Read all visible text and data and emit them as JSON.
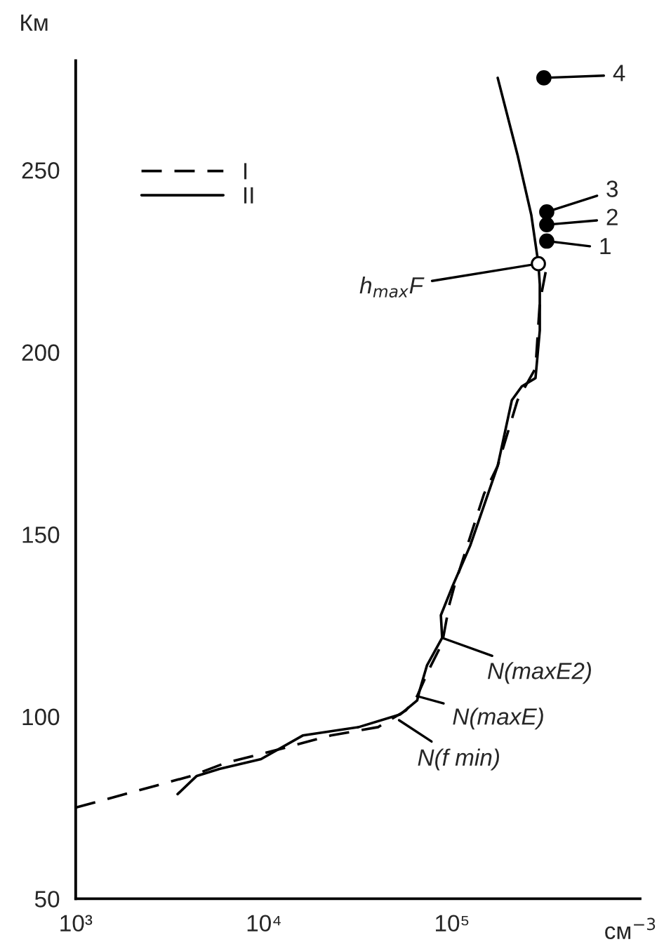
{
  "chart_data": {
    "type": "line",
    "ylabel": "Км",
    "xlabel": "см$^{−3}$",
    "log": "x",
    "xlim": [
      1000,
      1000000
    ],
    "xticks": [
      {
        "value": 1000,
        "label": "10³"
      },
      {
        "value": 10000,
        "label": "10⁴"
      },
      {
        "value": 100000,
        "label": "10⁵"
      }
    ],
    "ylim": [
      50,
      280
    ],
    "yticks": [
      50,
      100,
      150,
      200,
      250
    ],
    "grid": false,
    "legend": "top left",
    "series": [
      {
        "name": "I",
        "line_style": "dashed",
        "color": "#000000",
        "x": [
          1000,
          4120,
          6210,
          12900,
          22700,
          40500,
          57000,
          65300,
          74800,
          88700,
          96600,
          103500,
          148000,
          175000,
          223000,
          278000,
          293000,
          319000
        ],
        "values": [
          75,
          83.7,
          87.2,
          91.4,
          94.8,
          97.1,
          101.7,
          105.6,
          112.5,
          120.1,
          130.5,
          136.2,
          161.1,
          168.8,
          186.8,
          195.6,
          213.6,
          223.6
        ]
      },
      {
        "name": "II",
        "line_style": "solid",
        "color": "#000000",
        "x": [
          3480,
          4400,
          5800,
          9660,
          16100,
          31900,
          53200,
          65300,
          67600,
          73600,
          88700,
          87300,
          100000,
          125000,
          175000,
          208000,
          235000,
          278000,
          293000,
          293000,
          288000,
          264000,
          223000,
          175000
        ],
        "values": [
          78.7,
          83.7,
          85.6,
          88.3,
          94.8,
          97.1,
          100.6,
          104.4,
          107.5,
          114,
          121.6,
          127.8,
          135.4,
          146.9,
          168.8,
          186.8,
          190.6,
          192.9,
          206,
          218.6,
          224.3,
          237.7,
          254.2,
          275.3
        ]
      },
      {
        "type": "scatter",
        "marker": "circle",
        "color": "#ffffff",
        "x": [
          288000
        ],
        "values": [
          224.3
        ]
      },
      {
        "type": "scatter",
        "marker": "circle",
        "color": "#000000",
        "x": [
          319000,
          319000,
          319000,
          308000
        ],
        "values": [
          230.5,
          235,
          238.5,
          275.3
        ]
      }
    ],
    "annotations": [
      {
        "text": "h$_{max}$F",
        "x": 288000,
        "y": 224.3
      },
      {
        "text": "1",
        "x": 319000,
        "y": 230.5
      },
      {
        "text": "2",
        "x": 319000,
        "y": 235
      },
      {
        "text": "3",
        "x": 319000,
        "y": 238.5
      },
      {
        "text": "4",
        "x": 308000,
        "y": 275.3
      },
      {
        "text": "N(maxE2)",
        "x": 88700,
        "y": 121.6
      },
      {
        "text": "N(maxE)",
        "x": 65300,
        "y": 105.6
      },
      {
        "text": "N(f min)",
        "x": 52300,
        "y": 99
      }
    ]
  }
}
